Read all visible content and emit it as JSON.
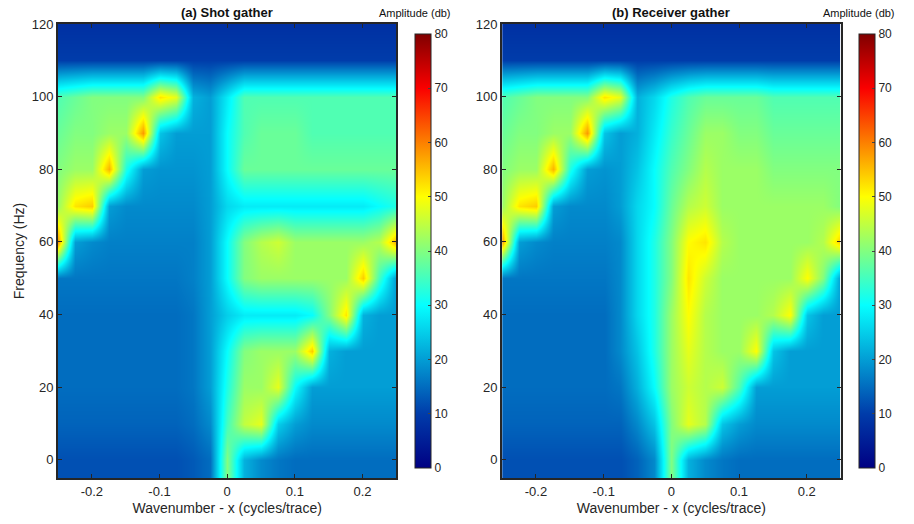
{
  "chart_data": [
    {
      "type": "heatmap",
      "title": "(a) Shot gather",
      "xlabel": "Wavenumber - x (cycles/trace)",
      "ylabel": "Frequency (Hz)",
      "xlim": [
        -0.25,
        0.25
      ],
      "ylim": [
        -5,
        120
      ],
      "xticks": [
        -0.2,
        -0.1,
        0,
        0.1,
        0.2
      ],
      "yticks": [
        0,
        20,
        40,
        60,
        80,
        100,
        120
      ],
      "x": [
        -0.25,
        -0.225,
        -0.2,
        -0.175,
        -0.15,
        -0.125,
        -0.1,
        -0.075,
        -0.05,
        -0.025,
        0,
        0.025,
        0.05,
        0.075,
        0.1,
        0.125,
        0.15,
        0.175,
        0.2,
        0.225,
        0.25
      ],
      "y": [
        0,
        10,
        20,
        30,
        40,
        50,
        60,
        70,
        80,
        90,
        100,
        110,
        120
      ],
      "z": [
        [
          12,
          12,
          12,
          12,
          12,
          12,
          12,
          12,
          13,
          15,
          40,
          22,
          18,
          16,
          15,
          15,
          15,
          15,
          15,
          15,
          15
        ],
        [
          14,
          14,
          14,
          14,
          14,
          14,
          14,
          14,
          15,
          18,
          35,
          45,
          48,
          25,
          20,
          18,
          18,
          18,
          18,
          18,
          18
        ],
        [
          15,
          15,
          15,
          15,
          15,
          15,
          15,
          15,
          16,
          20,
          32,
          42,
          42,
          48,
          30,
          20,
          20,
          20,
          20,
          20,
          20
        ],
        [
          15,
          15,
          15,
          15,
          15,
          15,
          15,
          15,
          16,
          20,
          30,
          40,
          42,
          42,
          42,
          54,
          22,
          20,
          20,
          20,
          20
        ],
        [
          15,
          15,
          15,
          15,
          15,
          15,
          15,
          15,
          16,
          20,
          25,
          28,
          28,
          28,
          28,
          30,
          40,
          52,
          22,
          20,
          20
        ],
        [
          16,
          16,
          16,
          16,
          16,
          16,
          16,
          16,
          17,
          20,
          30,
          40,
          42,
          42,
          42,
          42,
          42,
          42,
          54,
          35,
          20
        ],
        [
          58,
          20,
          18,
          17,
          17,
          17,
          17,
          17,
          17,
          20,
          30,
          40,
          44,
          46,
          42,
          42,
          42,
          42,
          42,
          44,
          56
        ],
        [
          42,
          52,
          54,
          20,
          18,
          18,
          18,
          18,
          18,
          20,
          26,
          28,
          28,
          28,
          28,
          28,
          28,
          28,
          28,
          30,
          32
        ],
        [
          40,
          42,
          42,
          56,
          32,
          20,
          19,
          19,
          19,
          20,
          30,
          38,
          38,
          38,
          38,
          38,
          38,
          38,
          38,
          38,
          38
        ],
        [
          38,
          40,
          40,
          42,
          42,
          58,
          24,
          20,
          20,
          20,
          30,
          36,
          38,
          38,
          38,
          36,
          36,
          36,
          36,
          36,
          36
        ],
        [
          36,
          38,
          40,
          40,
          40,
          40,
          52,
          48,
          22,
          20,
          28,
          36,
          36,
          36,
          36,
          36,
          36,
          36,
          36,
          36,
          36
        ],
        [
          10,
          10,
          10,
          10,
          10,
          10,
          10,
          10,
          10,
          10,
          10,
          10,
          10,
          10,
          10,
          10,
          10,
          10,
          10,
          10,
          10
        ],
        [
          8,
          8,
          8,
          8,
          8,
          8,
          8,
          8,
          8,
          8,
          8,
          8,
          8,
          8,
          8,
          8,
          8,
          8,
          8,
          8,
          8
        ]
      ],
      "colorbar": {
        "title": "Amplitude (db)",
        "range": [
          0,
          80
        ],
        "ticks": [
          0,
          10,
          20,
          30,
          40,
          50,
          60,
          70,
          80
        ]
      }
    },
    {
      "type": "heatmap",
      "title": "(b) Receiver gather",
      "xlabel": "Wavenumber - x (cycles/trace)",
      "xlim": [
        -0.25,
        0.25
      ],
      "ylim": [
        -5,
        120
      ],
      "xticks": [
        -0.2,
        -0.1,
        0,
        0.1,
        0.2
      ],
      "yticks": [
        0,
        20,
        40,
        60,
        80,
        100,
        120
      ],
      "x": [
        -0.25,
        -0.225,
        -0.2,
        -0.175,
        -0.15,
        -0.125,
        -0.1,
        -0.075,
        -0.05,
        -0.025,
        0,
        0.025,
        0.05,
        0.075,
        0.1,
        0.125,
        0.15,
        0.175,
        0.2,
        0.225,
        0.25
      ],
      "y": [
        0,
        10,
        20,
        30,
        40,
        50,
        60,
        70,
        80,
        90,
        100,
        110,
        120
      ],
      "z": [
        [
          12,
          12,
          12,
          12,
          12,
          12,
          12,
          12,
          14,
          18,
          40,
          22,
          18,
          16,
          15,
          15,
          15,
          15,
          15,
          15,
          15
        ],
        [
          14,
          14,
          14,
          14,
          14,
          14,
          14,
          14,
          18,
          24,
          40,
          48,
          44,
          24,
          20,
          18,
          18,
          18,
          18,
          18,
          18
        ],
        [
          15,
          15,
          15,
          15,
          15,
          15,
          15,
          16,
          22,
          30,
          42,
          46,
          44,
          46,
          36,
          20,
          20,
          20,
          20,
          20,
          20
        ],
        [
          15,
          15,
          15,
          15,
          15,
          15,
          15,
          18,
          24,
          32,
          42,
          48,
          44,
          42,
          42,
          50,
          24,
          20,
          20,
          20,
          20
        ],
        [
          15,
          15,
          15,
          15,
          15,
          15,
          15,
          18,
          26,
          32,
          42,
          50,
          44,
          42,
          42,
          42,
          44,
          50,
          24,
          20,
          20
        ],
        [
          16,
          16,
          16,
          16,
          16,
          16,
          16,
          18,
          26,
          32,
          40,
          52,
          46,
          42,
          42,
          42,
          42,
          42,
          50,
          40,
          20
        ],
        [
          58,
          20,
          18,
          17,
          17,
          17,
          17,
          18,
          26,
          32,
          40,
          50,
          52,
          44,
          42,
          42,
          42,
          42,
          42,
          44,
          54
        ],
        [
          42,
          52,
          54,
          20,
          18,
          18,
          18,
          20,
          26,
          30,
          38,
          44,
          46,
          42,
          42,
          42,
          42,
          42,
          42,
          42,
          40
        ],
        [
          40,
          42,
          42,
          56,
          32,
          20,
          19,
          20,
          24,
          30,
          36,
          40,
          44,
          42,
          42,
          42,
          40,
          40,
          40,
          40,
          40
        ],
        [
          38,
          40,
          40,
          42,
          42,
          58,
          24,
          20,
          22,
          28,
          34,
          38,
          42,
          42,
          40,
          40,
          38,
          38,
          38,
          38,
          38
        ],
        [
          36,
          38,
          40,
          40,
          40,
          40,
          52,
          48,
          22,
          26,
          32,
          36,
          38,
          38,
          38,
          38,
          36,
          36,
          36,
          36,
          36
        ],
        [
          10,
          10,
          10,
          10,
          10,
          10,
          10,
          10,
          10,
          10,
          10,
          10,
          10,
          10,
          10,
          10,
          10,
          10,
          10,
          10,
          10
        ],
        [
          8,
          8,
          8,
          8,
          8,
          8,
          8,
          8,
          8,
          8,
          8,
          8,
          8,
          8,
          8,
          8,
          8,
          8,
          8,
          8,
          8
        ]
      ],
      "colorbar": {
        "title": "Amplitude (db)",
        "range": [
          0,
          80
        ],
        "ticks": [
          0,
          10,
          20,
          30,
          40,
          50,
          60,
          70,
          80
        ]
      }
    }
  ]
}
